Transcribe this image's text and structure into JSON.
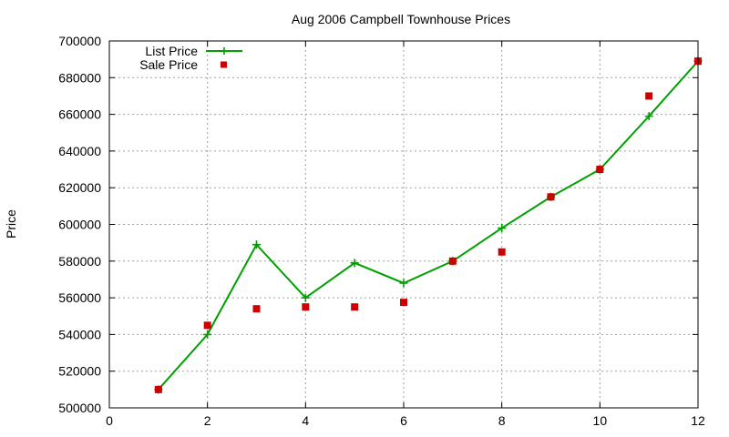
{
  "chart_data": {
    "type": "line",
    "title": "Aug 2006 Campbell Townhouse Prices",
    "xlabel": "",
    "ylabel": "Price",
    "xlim": [
      0,
      12
    ],
    "ylim": [
      500000,
      700000
    ],
    "x_ticks": [
      "0",
      "2",
      "4",
      "6",
      "8",
      "10",
      "12"
    ],
    "y_ticks": [
      "500000",
      "520000",
      "540000",
      "560000",
      "580000",
      "600000",
      "620000",
      "640000",
      "660000",
      "680000",
      "700000"
    ],
    "grid": true,
    "legend_position": "top-left",
    "series": [
      {
        "name": "List Price",
        "style": "line-with-plus-markers",
        "color": "#00a000",
        "x": [
          1,
          2,
          3,
          4,
          5,
          6,
          7,
          8,
          9,
          10,
          11,
          12
        ],
        "values": [
          510000,
          540000,
          589000,
          560000,
          579000,
          568000,
          580000,
          598000,
          615000,
          630000,
          659000,
          689000
        ]
      },
      {
        "name": "Sale Price",
        "style": "square-markers",
        "color": "#cc0000",
        "x": [
          1,
          2,
          3,
          4,
          5,
          6,
          7,
          8,
          9,
          10,
          11,
          12
        ],
        "values": [
          510000,
          545000,
          554000,
          555000,
          555000,
          557500,
          580000,
          585000,
          615000,
          630000,
          670000,
          689000
        ]
      }
    ]
  }
}
